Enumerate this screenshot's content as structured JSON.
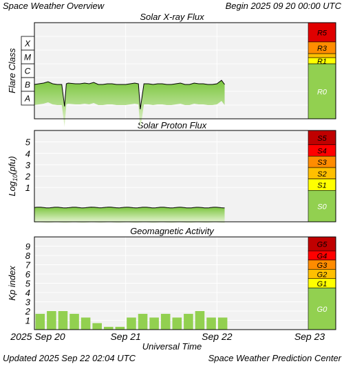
{
  "header": {
    "title": "Space Weather Overview",
    "begin": "Begin 2025 09 20 00:00 UTC"
  },
  "footer": {
    "updated": "Updated 2025 Sep 22 02:04 UTC",
    "credit": "Space Weather Prediction Center",
    "xlabel": "Universal Time"
  },
  "time_axis": {
    "ticks": [
      "2025 Sep 20",
      "Sep 21",
      "Sep 22",
      "Sep 23"
    ]
  },
  "colors": {
    "plot_bg": "#f2f2f2",
    "grid": "#ffffff",
    "fill_green": "#8cd04f",
    "kp_bar": "#92d050",
    "scale_green": "#92d050",
    "scale_yellow": "#ffff00",
    "scale_gold": "#ffc000",
    "scale_orange": "#ff8c00",
    "scale_red_orange": "#ff3300",
    "scale_red": "#e00000",
    "scale_dark_red": "#c00000"
  },
  "chart_data": [
    {
      "type": "line",
      "title": "Solar X-ray Flux",
      "ylabel": "Flare Class",
      "y_class_labels": [
        "X",
        "M",
        "C",
        "B",
        "A"
      ],
      "ylim_log10_w_m2": [
        -9,
        -2
      ],
      "x_days": [
        0.0,
        0.05,
        0.1,
        0.15,
        0.2,
        0.25,
        0.3,
        0.33,
        0.35,
        0.37,
        0.45,
        0.5,
        0.55,
        0.6,
        0.65,
        0.7,
        0.75,
        0.8,
        0.85,
        0.9,
        0.95,
        1.0,
        1.05,
        1.1,
        1.14,
        1.16,
        1.2,
        1.25,
        1.3,
        1.35,
        1.4,
        1.45,
        1.5,
        1.55,
        1.6,
        1.65,
        1.7,
        1.75,
        1.8,
        1.85,
        1.9,
        1.95,
        2.0,
        2.05,
        2.084
      ],
      "y_log10_w_m2": [
        -6.5,
        -6.45,
        -6.4,
        -6.3,
        -6.45,
        -6.5,
        -6.5,
        -8.1,
        -6.45,
        -6.4,
        -6.45,
        -6.45,
        -6.4,
        -6.45,
        -6.35,
        -6.5,
        -6.5,
        -6.45,
        -6.45,
        -6.5,
        -6.5,
        -6.5,
        -6.45,
        -6.4,
        -6.45,
        -8.3,
        -6.45,
        -6.45,
        -6.5,
        -6.45,
        -6.45,
        -6.5,
        -6.5,
        -6.45,
        -6.4,
        -6.5,
        -6.5,
        -6.4,
        -6.45,
        -6.45,
        -6.5,
        -6.5,
        -6.45,
        -6.2,
        -6.5
      ],
      "scales": [
        {
          "label": "R5",
          "color": "#e00000"
        },
        {
          "label": "R3",
          "color": "#ff8c00"
        },
        {
          "label": "R1",
          "color": "#ffff00"
        },
        {
          "label": "R0",
          "color": "#92d050"
        }
      ]
    },
    {
      "type": "line",
      "title": "Solar Proton Flux",
      "ylabel": "Log10(pfu)",
      "ylabel_parts": [
        "Log",
        "10",
        "(pfu)"
      ],
      "yticks": [
        "1",
        "2",
        "3",
        "4",
        "5"
      ],
      "ylim": [
        -2,
        6
      ],
      "x_days": [
        0.0,
        0.25,
        0.5,
        0.75,
        1.0,
        1.25,
        1.5,
        1.75,
        2.0,
        2.084
      ],
      "y": [
        -0.75,
        -0.75,
        -0.75,
        -0.74,
        -0.75,
        -0.75,
        -0.75,
        -0.76,
        -0.75,
        -0.75
      ],
      "scales": [
        {
          "label": "S5",
          "color": "#c00000"
        },
        {
          "label": "S4",
          "color": "#ff0000"
        },
        {
          "label": "S3",
          "color": "#ff8c00"
        },
        {
          "label": "S2",
          "color": "#ffc000"
        },
        {
          "label": "S1",
          "color": "#ffff00"
        },
        {
          "label": "S0",
          "color": "#92d050"
        }
      ]
    },
    {
      "type": "bar",
      "title": "Geomagnetic Activity",
      "ylabel": "Kp index",
      "yticks": [
        "1",
        "2",
        "3",
        "4",
        "5",
        "6",
        "7",
        "8",
        "9"
      ],
      "ylim": [
        0,
        10
      ],
      "bar_width_hours": 3,
      "kp_values": [
        1.7,
        2.0,
        2.0,
        1.7,
        1.3,
        0.7,
        0.3,
        0.3,
        1.3,
        1.7,
        1.3,
        1.7,
        1.3,
        1.7,
        2.0,
        1.3,
        1.3
      ],
      "scales": [
        {
          "label": "G5",
          "color": "#c00000"
        },
        {
          "label": "G4",
          "color": "#ff0000"
        },
        {
          "label": "G3",
          "color": "#ff8c00"
        },
        {
          "label": "G2",
          "color": "#ffc000"
        },
        {
          "label": "G1",
          "color": "#ffff00"
        },
        {
          "label": "G0",
          "color": "#92d050"
        }
      ]
    }
  ]
}
